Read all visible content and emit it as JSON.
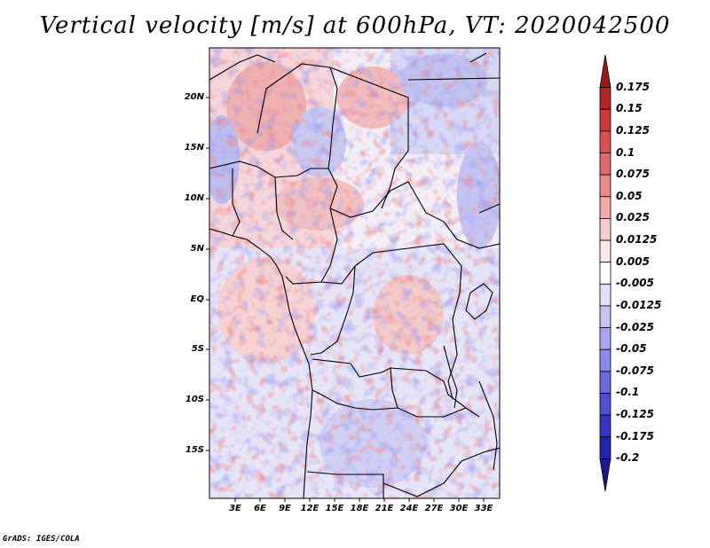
{
  "title": "Vertical velocity [m/s] at 600hPa, VT: 2020042500",
  "y_ticks": [
    "20N",
    "15N",
    "10N",
    "5N",
    "EQ",
    "5S",
    "10S",
    "15S"
  ],
  "x_ticks": [
    "3E",
    "6E",
    "9E",
    "12E",
    "15E",
    "18E",
    "21E",
    "24E",
    "27E",
    "30E",
    "33E"
  ],
  "colorbar": {
    "labels": [
      "0.175",
      "0.15",
      "0.125",
      "0.1",
      "0.075",
      "0.05",
      "0.025",
      "0.0125",
      "0.005",
      "-0.005",
      "-0.0125",
      "-0.025",
      "-0.05",
      "-0.075",
      "-0.1",
      "-0.125",
      "-0.175",
      "-0.2"
    ],
    "colors": [
      "#9a1b1b",
      "#b32626",
      "#c93a3a",
      "#d95252",
      "#e06a6a",
      "#e98a8a",
      "#f2aaaa",
      "#f8cccc",
      "#fde8e8",
      "#ffffff",
      "#e0e0fb",
      "#c4c4f4",
      "#a6a6ee",
      "#8a8ae6",
      "#6b6bdc",
      "#4f4fd0",
      "#3636c2",
      "#2424ac",
      "#1a1a90"
    ]
  },
  "credit": "GrADS: IGES/COLA"
}
